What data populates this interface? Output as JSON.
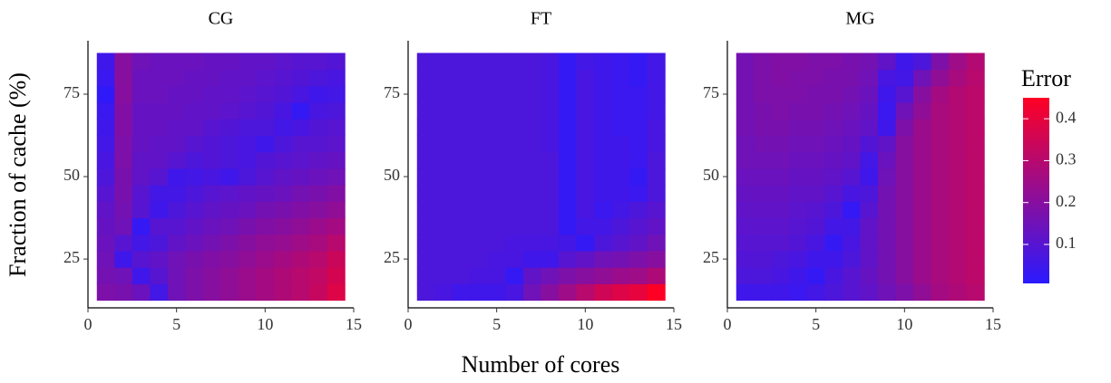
{
  "xlabel": "Number of cores",
  "ylabel": "Fraction of cache (%)",
  "legend": {
    "title": "Error",
    "lim": [
      0.007,
      0.45
    ],
    "ticks": [
      0.1,
      0.2,
      0.3,
      0.4
    ],
    "low_color": "#2a1aff",
    "high_color": "#ff0024"
  },
  "chart_data": [
    {
      "type": "heatmap",
      "title": "CG",
      "x": [
        1,
        2,
        3,
        4,
        5,
        6,
        7,
        8,
        9,
        10,
        11,
        12,
        13,
        14
      ],
      "y": [
        15,
        20,
        25,
        30,
        35,
        40,
        45,
        50,
        55,
        60,
        65,
        70,
        75,
        80,
        85
      ],
      "xlim": [
        0,
        15
      ],
      "ylim": [
        10.2,
        91.2
      ],
      "xticks": [
        0,
        5,
        10,
        15
      ],
      "yticks": [
        25,
        50,
        75
      ],
      "values": [
        [
          0.18,
          0.17,
          0.14,
          0.06,
          0.15,
          0.18,
          0.2,
          0.22,
          0.24,
          0.26,
          0.28,
          0.3,
          0.33,
          0.38
        ],
        [
          0.16,
          0.15,
          0.05,
          0.1,
          0.15,
          0.18,
          0.2,
          0.22,
          0.24,
          0.26,
          0.28,
          0.3,
          0.32,
          0.36
        ],
        [
          0.15,
          0.05,
          0.1,
          0.12,
          0.15,
          0.17,
          0.19,
          0.2,
          0.22,
          0.24,
          0.26,
          0.28,
          0.3,
          0.34
        ],
        [
          0.14,
          0.1,
          0.06,
          0.08,
          0.12,
          0.14,
          0.16,
          0.18,
          0.2,
          0.22,
          0.23,
          0.25,
          0.27,
          0.3
        ],
        [
          0.13,
          0.15,
          0.03,
          0.1,
          0.1,
          0.12,
          0.14,
          0.15,
          0.17,
          0.19,
          0.2,
          0.22,
          0.24,
          0.26
        ],
        [
          0.12,
          0.16,
          0.1,
          0.05,
          0.08,
          0.1,
          0.12,
          0.13,
          0.14,
          0.16,
          0.17,
          0.19,
          0.2,
          0.22
        ],
        [
          0.1,
          0.17,
          0.1,
          0.06,
          0.06,
          0.08,
          0.1,
          0.11,
          0.12,
          0.13,
          0.14,
          0.16,
          0.17,
          0.19
        ],
        [
          0.08,
          0.17,
          0.12,
          0.1,
          0.05,
          0.06,
          0.07,
          0.05,
          0.08,
          0.1,
          0.12,
          0.13,
          0.14,
          0.15
        ],
        [
          0.07,
          0.18,
          0.12,
          0.12,
          0.1,
          0.08,
          0.09,
          0.08,
          0.07,
          0.09,
          0.1,
          0.11,
          0.12,
          0.13
        ],
        [
          0.06,
          0.18,
          0.13,
          0.12,
          0.12,
          0.1,
          0.09,
          0.08,
          0.07,
          0.05,
          0.08,
          0.1,
          0.1,
          0.11
        ],
        [
          0.05,
          0.19,
          0.13,
          0.13,
          0.12,
          0.12,
          0.1,
          0.09,
          0.08,
          0.08,
          0.06,
          0.07,
          0.09,
          0.1
        ],
        [
          0.04,
          0.19,
          0.13,
          0.13,
          0.13,
          0.12,
          0.12,
          0.11,
          0.1,
          0.09,
          0.07,
          0.03,
          0.07,
          0.08
        ],
        [
          0.02,
          0.2,
          0.14,
          0.14,
          0.13,
          0.13,
          0.12,
          0.12,
          0.11,
          0.1,
          0.09,
          0.07,
          0.05,
          0.06
        ],
        [
          0.04,
          0.2,
          0.14,
          0.14,
          0.14,
          0.13,
          0.13,
          0.12,
          0.12,
          0.11,
          0.1,
          0.09,
          0.08,
          0.07
        ],
        [
          0.05,
          0.2,
          0.15,
          0.14,
          0.14,
          0.14,
          0.13,
          0.13,
          0.12,
          0.12,
          0.11,
          0.1,
          0.1,
          0.09
        ]
      ]
    },
    {
      "type": "heatmap",
      "title": "FT",
      "x": [
        1,
        2,
        3,
        4,
        5,
        6,
        7,
        8,
        9,
        10,
        11,
        12,
        13,
        14
      ],
      "y": [
        15,
        20,
        25,
        30,
        35,
        40,
        45,
        50,
        55,
        60,
        65,
        70,
        75,
        80,
        85
      ],
      "xlim": [
        0,
        15
      ],
      "ylim": [
        10.2,
        91.2
      ],
      "xticks": [
        0,
        5,
        10,
        15
      ],
      "yticks": [
        25,
        50,
        75
      ],
      "values": [
        [
          0.08,
          0.07,
          0.05,
          0.05,
          0.05,
          0.07,
          0.15,
          0.2,
          0.25,
          0.3,
          0.35,
          0.38,
          0.4,
          0.45
        ],
        [
          0.08,
          0.08,
          0.08,
          0.07,
          0.07,
          0.03,
          0.12,
          0.15,
          0.18,
          0.2,
          0.22,
          0.24,
          0.25,
          0.28
        ],
        [
          0.08,
          0.08,
          0.08,
          0.08,
          0.07,
          0.07,
          0.05,
          0.05,
          0.1,
          0.12,
          0.15,
          0.16,
          0.18,
          0.2
        ],
        [
          0.08,
          0.08,
          0.08,
          0.08,
          0.08,
          0.07,
          0.07,
          0.07,
          0.06,
          0.03,
          0.08,
          0.1,
          0.12,
          0.15
        ],
        [
          0.08,
          0.08,
          0.08,
          0.08,
          0.08,
          0.08,
          0.08,
          0.08,
          0.03,
          0.06,
          0.06,
          0.08,
          0.1,
          0.12
        ],
        [
          0.08,
          0.08,
          0.08,
          0.08,
          0.08,
          0.08,
          0.08,
          0.08,
          0.03,
          0.07,
          0.04,
          0.06,
          0.08,
          0.1
        ],
        [
          0.08,
          0.08,
          0.08,
          0.08,
          0.08,
          0.08,
          0.08,
          0.08,
          0.03,
          0.07,
          0.05,
          0.05,
          0.04,
          0.08
        ],
        [
          0.08,
          0.08,
          0.08,
          0.08,
          0.08,
          0.08,
          0.08,
          0.08,
          0.03,
          0.07,
          0.05,
          0.05,
          0.03,
          0.08
        ],
        [
          0.08,
          0.08,
          0.08,
          0.08,
          0.08,
          0.08,
          0.08,
          0.08,
          0.03,
          0.07,
          0.05,
          0.05,
          0.04,
          0.08
        ],
        [
          0.08,
          0.08,
          0.08,
          0.08,
          0.08,
          0.08,
          0.08,
          0.07,
          0.03,
          0.07,
          0.05,
          0.05,
          0.04,
          0.07
        ],
        [
          0.08,
          0.08,
          0.08,
          0.08,
          0.08,
          0.08,
          0.08,
          0.07,
          0.03,
          0.07,
          0.05,
          0.04,
          0.04,
          0.07
        ],
        [
          0.08,
          0.08,
          0.08,
          0.08,
          0.08,
          0.08,
          0.08,
          0.07,
          0.03,
          0.07,
          0.05,
          0.04,
          0.04,
          0.06
        ],
        [
          0.08,
          0.08,
          0.08,
          0.08,
          0.08,
          0.08,
          0.08,
          0.07,
          0.03,
          0.07,
          0.05,
          0.04,
          0.04,
          0.06
        ],
        [
          0.08,
          0.08,
          0.08,
          0.08,
          0.08,
          0.08,
          0.08,
          0.07,
          0.03,
          0.07,
          0.05,
          0.04,
          0.03,
          0.06
        ],
        [
          0.08,
          0.08,
          0.08,
          0.08,
          0.08,
          0.08,
          0.08,
          0.07,
          0.03,
          0.06,
          0.05,
          0.04,
          0.03,
          0.06
        ]
      ]
    },
    {
      "type": "heatmap",
      "title": "MG",
      "x": [
        1,
        2,
        3,
        4,
        5,
        6,
        7,
        8,
        9,
        10,
        11,
        12,
        13,
        14
      ],
      "y": [
        15,
        20,
        25,
        30,
        35,
        40,
        45,
        50,
        55,
        60,
        65,
        70,
        75,
        80,
        85
      ],
      "xlim": [
        0,
        15
      ],
      "ylim": [
        10.2,
        91.2
      ],
      "xticks": [
        0,
        5,
        10,
        15
      ],
      "yticks": [
        25,
        50,
        75
      ],
      "values": [
        [
          0.05,
          0.05,
          0.05,
          0.04,
          0.06,
          0.08,
          0.1,
          0.12,
          0.15,
          0.18,
          0.22,
          0.26,
          0.28,
          0.3
        ],
        [
          0.08,
          0.08,
          0.07,
          0.05,
          0.03,
          0.07,
          0.1,
          0.13,
          0.16,
          0.2,
          0.24,
          0.27,
          0.29,
          0.31
        ],
        [
          0.09,
          0.09,
          0.08,
          0.07,
          0.05,
          0.05,
          0.08,
          0.12,
          0.16,
          0.2,
          0.24,
          0.27,
          0.29,
          0.31
        ],
        [
          0.1,
          0.1,
          0.1,
          0.09,
          0.07,
          0.03,
          0.07,
          0.12,
          0.16,
          0.2,
          0.24,
          0.27,
          0.29,
          0.31
        ],
        [
          0.11,
          0.11,
          0.11,
          0.1,
          0.09,
          0.06,
          0.06,
          0.12,
          0.16,
          0.2,
          0.24,
          0.27,
          0.29,
          0.31
        ],
        [
          0.12,
          0.12,
          0.12,
          0.11,
          0.1,
          0.08,
          0.03,
          0.1,
          0.16,
          0.2,
          0.24,
          0.27,
          0.29,
          0.31
        ],
        [
          0.13,
          0.13,
          0.13,
          0.12,
          0.12,
          0.1,
          0.07,
          0.08,
          0.16,
          0.2,
          0.24,
          0.27,
          0.29,
          0.31
        ],
        [
          0.14,
          0.14,
          0.14,
          0.13,
          0.13,
          0.12,
          0.1,
          0.05,
          0.15,
          0.2,
          0.24,
          0.27,
          0.29,
          0.31
        ],
        [
          0.15,
          0.15,
          0.15,
          0.14,
          0.14,
          0.13,
          0.12,
          0.06,
          0.14,
          0.2,
          0.24,
          0.27,
          0.29,
          0.31
        ],
        [
          0.15,
          0.16,
          0.16,
          0.15,
          0.15,
          0.14,
          0.13,
          0.09,
          0.12,
          0.2,
          0.24,
          0.27,
          0.29,
          0.31
        ],
        [
          0.16,
          0.17,
          0.17,
          0.16,
          0.16,
          0.15,
          0.14,
          0.12,
          0.05,
          0.18,
          0.24,
          0.27,
          0.29,
          0.31
        ],
        [
          0.16,
          0.17,
          0.18,
          0.17,
          0.17,
          0.16,
          0.15,
          0.13,
          0.04,
          0.15,
          0.22,
          0.27,
          0.29,
          0.31
        ],
        [
          0.16,
          0.18,
          0.18,
          0.18,
          0.17,
          0.17,
          0.16,
          0.14,
          0.05,
          0.1,
          0.2,
          0.26,
          0.29,
          0.31
        ],
        [
          0.16,
          0.18,
          0.19,
          0.18,
          0.18,
          0.17,
          0.17,
          0.15,
          0.07,
          0.06,
          0.15,
          0.22,
          0.27,
          0.3
        ],
        [
          0.16,
          0.18,
          0.19,
          0.19,
          0.18,
          0.18,
          0.17,
          0.16,
          0.12,
          0.05,
          0.08,
          0.18,
          0.25,
          0.29
        ]
      ]
    }
  ]
}
